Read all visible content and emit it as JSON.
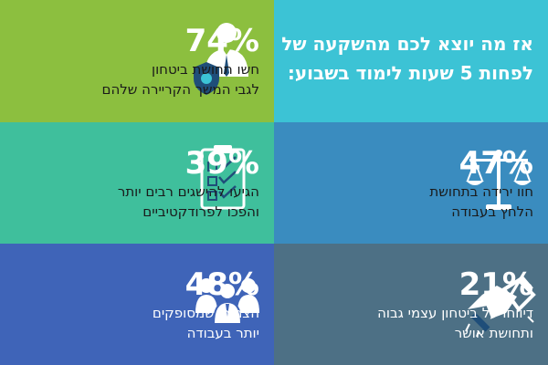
{
  "heading": {
    "line1": "אז מה יוצא לכם מהשקעה של",
    "line2": "לפחות 5 שעות לימוד בשבוע:"
  },
  "stats": {
    "career": {
      "value": "74%",
      "line1": "חשו תחושת ביטחון",
      "line2": "לגבי המשך הקריירה שלהם",
      "icon": "person-shield-icon"
    },
    "stress": {
      "value": "47%",
      "line1": "חוו ירידה בתחושת",
      "line2": "הלחץ בעבודה",
      "icon": "scales-icon"
    },
    "goals": {
      "value": "39%",
      "line1": "הגיעו להישגים רבים יותר",
      "line2": "והפכו לפרודקטיביים",
      "icon": "checklist-icon"
    },
    "satisfied": {
      "value": "48%",
      "line1": "הצהירו שמסופקים",
      "line2": "יותר בעבודה",
      "icon": "team-icon"
    },
    "confidence": {
      "value": "21%",
      "line1": "דיווחו על ביטחון עצמי גבוה",
      "line2": "ותחושת אושר",
      "icon": "handshake-icon"
    }
  },
  "colors": {
    "green": "#8cbf3f",
    "teal_light": "#3cc3d5",
    "teal": "#3fbf9c",
    "steel": "#3a8cbf",
    "blue": "#3f64b8",
    "slate": "#4d7085"
  }
}
